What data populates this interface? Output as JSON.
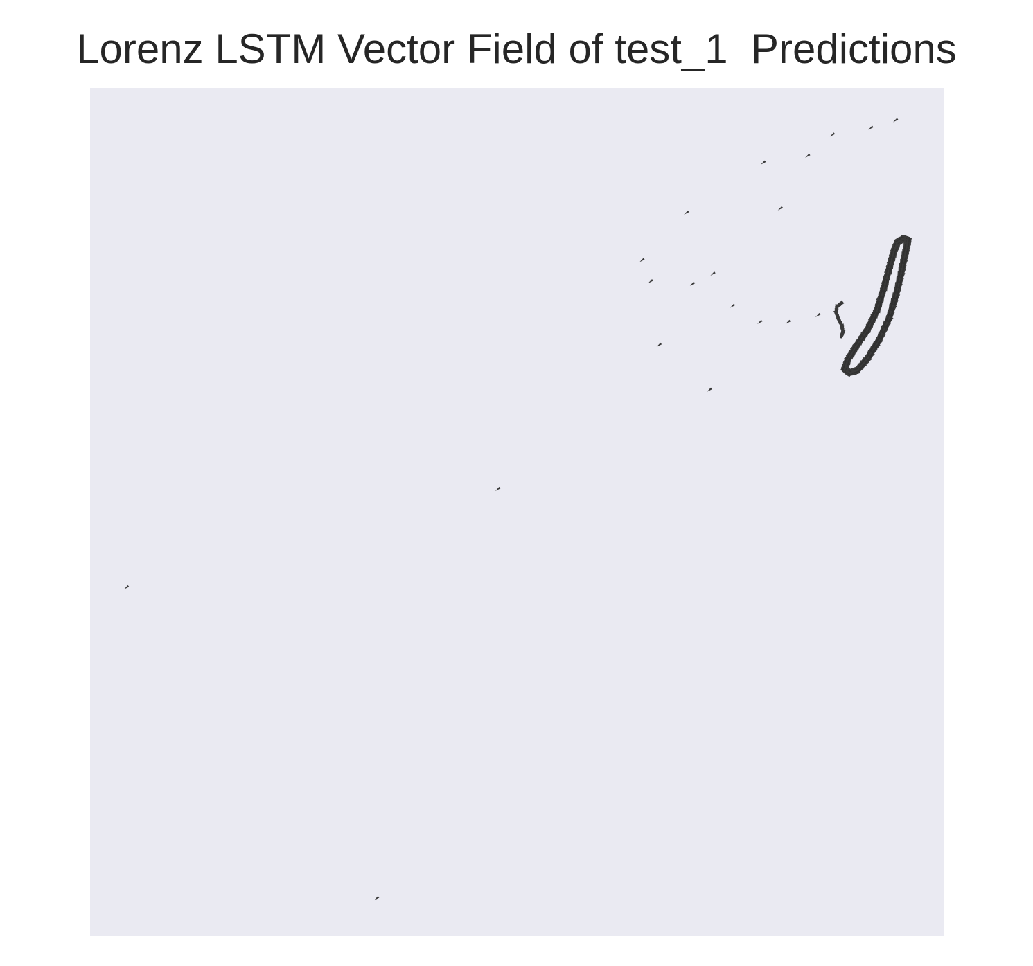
{
  "chart_data": {
    "type": "quiver",
    "title": "Lorenz LSTM Vector Field of test_1  Predictions",
    "xlabel": "",
    "ylabel": "",
    "xlim": [
      0,
      1
    ],
    "ylim": [
      0,
      1
    ],
    "axes_visible": false,
    "grid": false,
    "plot_background": "#eaeaf2",
    "arrow_color": "#3a3a3a",
    "arrows": [
      {
        "x": 0.944,
        "y": 0.962,
        "u": -0.004,
        "v": -0.003
      },
      {
        "x": 0.915,
        "y": 0.953,
        "u": -0.004,
        "v": -0.003
      },
      {
        "x": 0.87,
        "y": 0.945,
        "u": -0.004,
        "v": -0.003
      },
      {
        "x": 0.841,
        "y": 0.92,
        "u": -0.004,
        "v": -0.003
      },
      {
        "x": 0.789,
        "y": 0.912,
        "u": -0.004,
        "v": -0.003
      },
      {
        "x": 0.809,
        "y": 0.858,
        "u": -0.004,
        "v": -0.003
      },
      {
        "x": 0.699,
        "y": 0.853,
        "u": -0.004,
        "v": -0.003
      },
      {
        "x": 0.647,
        "y": 0.797,
        "u": -0.004,
        "v": -0.003
      },
      {
        "x": 0.657,
        "y": 0.772,
        "u": -0.004,
        "v": -0.003
      },
      {
        "x": 0.706,
        "y": 0.769,
        "u": -0.004,
        "v": -0.003
      },
      {
        "x": 0.73,
        "y": 0.781,
        "u": -0.004,
        "v": -0.003
      },
      {
        "x": 0.753,
        "y": 0.743,
        "u": -0.004,
        "v": -0.003
      },
      {
        "x": 0.785,
        "y": 0.724,
        "u": -0.004,
        "v": -0.003
      },
      {
        "x": 0.818,
        "y": 0.724,
        "u": -0.004,
        "v": -0.003
      },
      {
        "x": 0.853,
        "y": 0.732,
        "u": -0.004,
        "v": -0.003
      },
      {
        "x": 0.667,
        "y": 0.697,
        "u": -0.004,
        "v": -0.003
      },
      {
        "x": 0.726,
        "y": 0.644,
        "u": -0.004,
        "v": -0.003
      },
      {
        "x": 0.478,
        "y": 0.527,
        "u": -0.004,
        "v": -0.003
      },
      {
        "x": 0.043,
        "y": 0.411,
        "u": -0.004,
        "v": -0.003
      },
      {
        "x": 0.336,
        "y": 0.044,
        "u": -0.004,
        "v": -0.003
      }
    ],
    "dense_loop": [
      {
        "x": 0.958,
        "y": 0.821
      },
      {
        "x": 0.957,
        "y": 0.814
      },
      {
        "x": 0.954,
        "y": 0.8
      },
      {
        "x": 0.95,
        "y": 0.78
      },
      {
        "x": 0.944,
        "y": 0.755
      },
      {
        "x": 0.936,
        "y": 0.728
      },
      {
        "x": 0.924,
        "y": 0.702
      },
      {
        "x": 0.911,
        "y": 0.681
      },
      {
        "x": 0.899,
        "y": 0.667
      },
      {
        "x": 0.89,
        "y": 0.664
      },
      {
        "x": 0.884,
        "y": 0.668
      },
      {
        "x": 0.888,
        "y": 0.68
      },
      {
        "x": 0.898,
        "y": 0.696
      },
      {
        "x": 0.911,
        "y": 0.715
      },
      {
        "x": 0.922,
        "y": 0.738
      },
      {
        "x": 0.93,
        "y": 0.764
      },
      {
        "x": 0.937,
        "y": 0.79
      },
      {
        "x": 0.942,
        "y": 0.808
      },
      {
        "x": 0.946,
        "y": 0.818
      },
      {
        "x": 0.952,
        "y": 0.822
      },
      {
        "x": 0.958,
        "y": 0.821
      }
    ],
    "dense_tail": [
      {
        "x": 0.88,
        "y": 0.746
      },
      {
        "x": 0.875,
        "y": 0.742
      },
      {
        "x": 0.874,
        "y": 0.735
      },
      {
        "x": 0.877,
        "y": 0.727
      },
      {
        "x": 0.881,
        "y": 0.719
      },
      {
        "x": 0.882,
        "y": 0.712
      },
      {
        "x": 0.88,
        "y": 0.706
      }
    ]
  }
}
